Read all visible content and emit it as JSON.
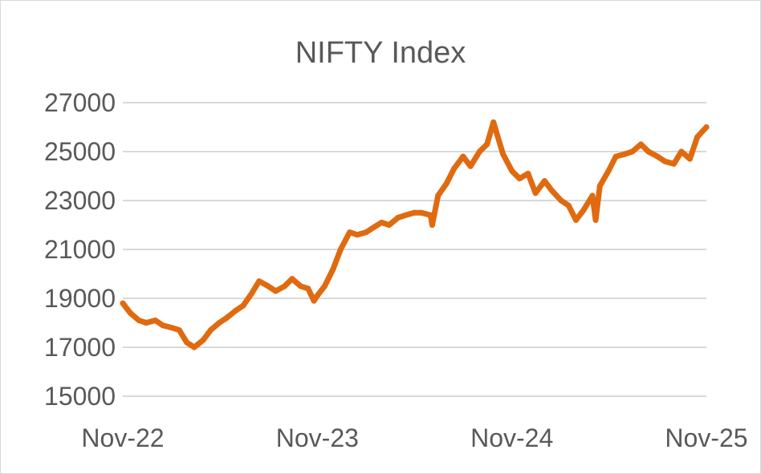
{
  "chart_data": {
    "type": "line",
    "title": "NIFTY Index",
    "xlabel": "",
    "ylabel": "",
    "ylim": [
      15000,
      27000
    ],
    "yticks": [
      15000,
      17000,
      19000,
      21000,
      23000,
      25000,
      27000
    ],
    "xticks": [
      "Nov-22",
      "Nov-23",
      "Nov-24",
      "Nov-25"
    ],
    "grid": true,
    "legend": "none",
    "series": [
      {
        "color": "#E06A10",
        "x": [
          "2022-11-01",
          "2022-11-15",
          "2022-12-01",
          "2022-12-15",
          "2023-01-01",
          "2023-01-15",
          "2023-02-01",
          "2023-02-15",
          "2023-03-01",
          "2023-03-15",
          "2023-04-01",
          "2023-04-15",
          "2023-05-01",
          "2023-05-15",
          "2023-06-01",
          "2023-06-15",
          "2023-07-01",
          "2023-07-15",
          "2023-08-01",
          "2023-08-15",
          "2023-09-01",
          "2023-09-15",
          "2023-10-01",
          "2023-10-15",
          "2023-10-26",
          "2023-11-01",
          "2023-11-15",
          "2023-12-01",
          "2023-12-15",
          "2024-01-01",
          "2024-01-15",
          "2024-02-01",
          "2024-02-15",
          "2024-03-01",
          "2024-03-15",
          "2024-04-01",
          "2024-04-15",
          "2024-05-01",
          "2024-05-15",
          "2024-06-01",
          "2024-06-04",
          "2024-06-15",
          "2024-07-01",
          "2024-07-15",
          "2024-08-01",
          "2024-08-15",
          "2024-09-01",
          "2024-09-15",
          "2024-09-27",
          "2024-10-15",
          "2024-11-01",
          "2024-11-15",
          "2024-12-01",
          "2024-12-15",
          "2025-01-01",
          "2025-01-15",
          "2025-02-01",
          "2025-02-15",
          "2025-03-01",
          "2025-03-15",
          "2025-04-01",
          "2025-04-07",
          "2025-04-15",
          "2025-05-01",
          "2025-05-15",
          "2025-06-01",
          "2025-06-15",
          "2025-07-01",
          "2025-07-15",
          "2025-08-01",
          "2025-08-15",
          "2025-09-01",
          "2025-09-15",
          "2025-10-01",
          "2025-10-15",
          "2025-11-01"
        ],
        "y": [
          18800,
          18400,
          18100,
          18000,
          18100,
          17900,
          17800,
          17700,
          17200,
          17000,
          17300,
          17700,
          18000,
          18200,
          18500,
          18700,
          19200,
          19700,
          19500,
          19300,
          19500,
          19800,
          19500,
          19400,
          18900,
          19100,
          19500,
          20200,
          21000,
          21700,
          21600,
          21700,
          21900,
          22100,
          22000,
          22300,
          22400,
          22500,
          22500,
          22400,
          22000,
          23200,
          23700,
          24300,
          24800,
          24400,
          25000,
          25300,
          26200,
          24900,
          24200,
          23900,
          24100,
          23300,
          23800,
          23400,
          23000,
          22800,
          22200,
          22600,
          23200,
          22200,
          23600,
          24200,
          24800,
          24900,
          25000,
          25300,
          25000,
          24800,
          24600,
          24500,
          25000,
          24700,
          25600,
          26000
        ]
      }
    ]
  }
}
